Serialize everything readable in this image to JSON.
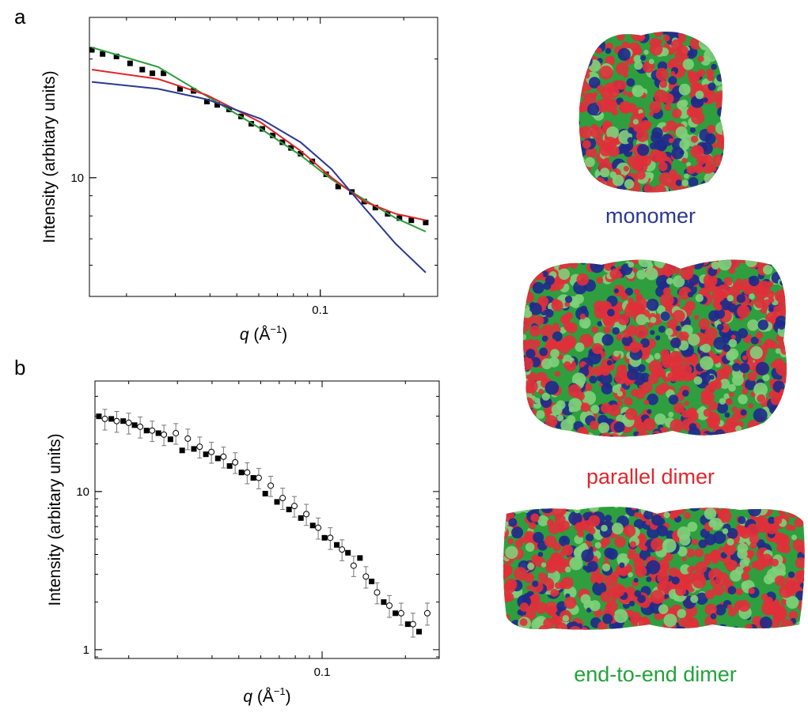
{
  "panel_labels": [
    "a",
    "b"
  ],
  "chart_data": [
    {
      "type": "scatter-line",
      "log_x": true,
      "log_y": true,
      "ylabel": "Intensity (arbitary units)",
      "xlabel": {
        "var": "q",
        "unit": " (Å",
        "exp": "−1",
        "close": ")"
      },
      "xlim": [
        0.0147,
        0.265
      ],
      "ylim": [
        5.0,
        25.5
      ],
      "xticks": [
        0.1
      ],
      "yticks": [
        10
      ],
      "series": [
        {
          "marker": "square",
          "color": "#000000",
          "x": [
            0.015,
            0.0164,
            0.0184,
            0.0206,
            0.0228,
            0.0248,
            0.0272,
            0.0312,
            0.0349,
            0.039,
            0.0425,
            0.0469,
            0.0518,
            0.0564,
            0.0618,
            0.0674,
            0.073,
            0.0784,
            0.0849,
            0.0936,
            0.105,
            0.116,
            0.13,
            0.144,
            0.158,
            0.175,
            0.193,
            0.213,
            0.24
          ],
          "values": [
            21.1,
            20.6,
            20.3,
            19.5,
            18.8,
            18.4,
            18.4,
            16.8,
            16.6,
            15.6,
            15.3,
            14.9,
            14.3,
            13.7,
            13.3,
            12.8,
            12.3,
            11.9,
            11.5,
            11.0,
            10.2,
            9.5,
            9.2,
            8.7,
            8.4,
            8.1,
            7.9,
            7.8,
            7.7
          ]
        },
        {
          "marker": "line",
          "color": "#2a9c3a",
          "x": [
            0.015,
            0.026,
            0.039,
            0.0611,
            0.0849,
            0.11,
            0.144,
            0.187,
            0.24
          ],
          "values": [
            21.4,
            19.1,
            16.1,
            13.3,
            11.4,
            9.9,
            8.8,
            7.9,
            7.3
          ]
        },
        {
          "marker": "line",
          "color": "#e0262b",
          "x": [
            0.015,
            0.026,
            0.039,
            0.0611,
            0.0849,
            0.11,
            0.144,
            0.187,
            0.24
          ],
          "values": [
            18.8,
            17.8,
            16.2,
            13.8,
            11.7,
            10.0,
            8.7,
            8.1,
            7.8
          ]
        },
        {
          "marker": "line",
          "color": "#2b3990",
          "x": [
            0.015,
            0.026,
            0.039,
            0.0611,
            0.0849,
            0.11,
            0.144,
            0.187,
            0.24
          ],
          "values": [
            17.5,
            16.8,
            15.8,
            14.1,
            12.3,
            10.5,
            8.4,
            6.8,
            5.75
          ]
        }
      ]
    },
    {
      "type": "scatter-line",
      "log_x": true,
      "log_y": true,
      "ylabel": "Intensity (arbitary units)",
      "xlabel": {
        "var": "q",
        "unit": " (Å",
        "exp": "−1",
        "close": ")"
      },
      "xlim": [
        0.0151,
        0.265
      ],
      "ylim": [
        0.88,
        50
      ],
      "xticks": [
        0.1
      ],
      "yticks": [
        1,
        10
      ],
      "series": [
        {
          "marker": "square",
          "color": "#000000",
          "x": [
            0.0156,
            0.0173,
            0.0191,
            0.021,
            0.0232,
            0.0256,
            0.0283,
            0.0312,
            0.0344,
            0.038,
            0.042,
            0.0463,
            0.0511,
            0.0564,
            0.0623,
            0.0687,
            0.0759,
            0.0838,
            0.0925,
            0.102,
            0.113,
            0.124,
            0.137,
            0.151,
            0.167,
            0.184,
            0.204,
            0.224
          ],
          "values": [
            29.9,
            28.8,
            27.9,
            26.3,
            24.3,
            23.4,
            21.4,
            18.2,
            18.6,
            17.2,
            16.2,
            14.5,
            13.2,
            12.2,
            9.7,
            8.6,
            7.7,
            6.8,
            6.1,
            5.1,
            4.6,
            4.1,
            3.8,
            2.7,
            2.0,
            1.7,
            1.45,
            1.3
          ]
        },
        {
          "marker": "circle-open",
          "color": "#000000",
          "x": [
            0.0164,
            0.0181,
            0.02,
            0.022,
            0.0243,
            0.0268,
            0.0296,
            0.0327,
            0.0361,
            0.0398,
            0.044,
            0.0485,
            0.0536,
            0.059,
            0.0652,
            0.072,
            0.0794,
            0.0877,
            0.0968,
            0.107,
            0.118,
            0.13,
            0.144,
            0.158,
            0.175,
            0.193,
            0.213,
            0.24
          ],
          "values": [
            28.8,
            27.9,
            27.2,
            25.7,
            24.3,
            22.9,
            23.4,
            21.6,
            19.2,
            17.8,
            16.6,
            15.3,
            13.2,
            12.2,
            10.9,
            9.1,
            8.1,
            7.2,
            5.9,
            5.1,
            4.3,
            3.4,
            2.9,
            2.3,
            1.9,
            1.7,
            1.45,
            1.7
          ],
          "errors": [
            4.3,
            4.2,
            4.1,
            3.9,
            3.6,
            3.4,
            3.5,
            3.2,
            2.9,
            2.7,
            2.5,
            2.3,
            2.0,
            1.8,
            1.6,
            1.4,
            1.2,
            1.1,
            0.9,
            0.8,
            0.65,
            0.5,
            0.45,
            0.35,
            0.3,
            0.27,
            0.25,
            0.27
          ]
        }
      ]
    }
  ],
  "structures": [
    {
      "caption": "monomer",
      "color": "#2b3990"
    },
    {
      "caption": "parallel dimer",
      "color": "#e0262b"
    },
    {
      "caption": "end-to-end dimer",
      "color": "#22a33a"
    }
  ]
}
